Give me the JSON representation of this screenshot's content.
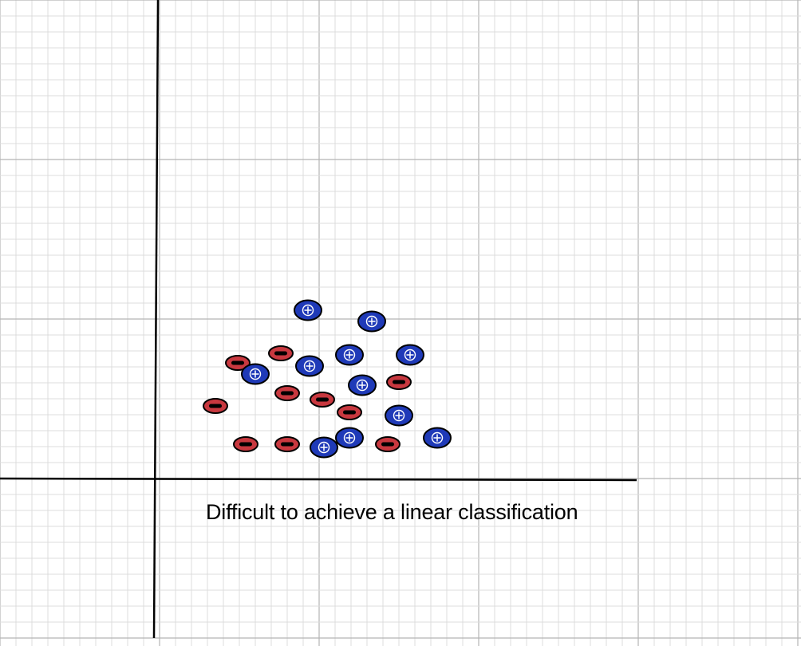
{
  "caption": "Difficult to achieve a linear classification",
  "colors": {
    "positive_fill": "#1f3ab8",
    "negative_fill": "#c8383f",
    "grid_minor": "#dcdcdc",
    "grid_major": "#b4b4b4",
    "axis": "#000000"
  },
  "legend_symbols": {
    "positive": "+",
    "negative": "−"
  },
  "points": {
    "positive": [
      [
        3.95,
        1.06
      ],
      [
        4.35,
        0.99
      ],
      [
        3.62,
        0.66
      ],
      [
        3.96,
        0.71
      ],
      [
        4.21,
        0.78
      ],
      [
        4.29,
        0.59
      ],
      [
        4.59,
        0.78
      ],
      [
        4.52,
        0.4
      ],
      [
        4.21,
        0.26
      ],
      [
        4.05,
        0.2
      ],
      [
        4.76,
        0.26
      ]
    ],
    "negative": [
      [
        3.51,
        0.73
      ],
      [
        3.78,
        0.79
      ],
      [
        3.82,
        0.54
      ],
      [
        4.04,
        0.5
      ],
      [
        4.52,
        0.61
      ],
      [
        4.21,
        0.42
      ],
      [
        3.37,
        0.46
      ],
      [
        3.56,
        0.22
      ],
      [
        3.82,
        0.22
      ],
      [
        4.45,
        0.22
      ]
    ]
  }
}
